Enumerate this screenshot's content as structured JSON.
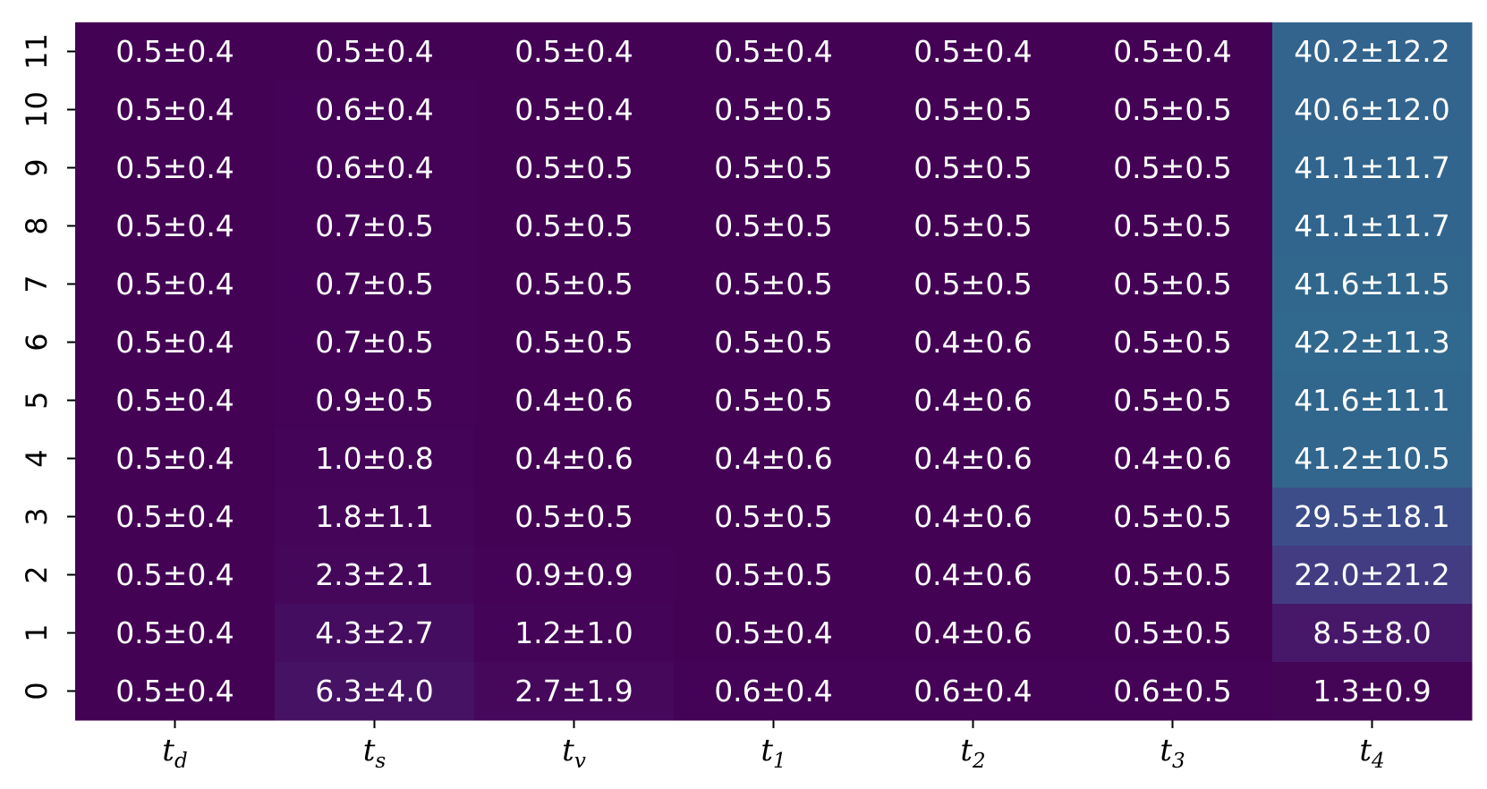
{
  "chart_data": {
    "type": "heatmap",
    "columns": [
      {
        "base": "t",
        "sub": "d"
      },
      {
        "base": "t",
        "sub": "s"
      },
      {
        "base": "t",
        "sub": "v"
      },
      {
        "base": "t",
        "sub": "1"
      },
      {
        "base": "t",
        "sub": "2"
      },
      {
        "base": "t",
        "sub": "3"
      },
      {
        "base": "t",
        "sub": "4"
      }
    ],
    "rows": [
      "11",
      "10",
      "9",
      "8",
      "7",
      "6",
      "5",
      "4",
      "3",
      "2",
      "1",
      "0"
    ],
    "values": [
      [
        0.5,
        0.5,
        0.5,
        0.5,
        0.5,
        0.5,
        40.2
      ],
      [
        0.5,
        0.6,
        0.5,
        0.5,
        0.5,
        0.5,
        40.6
      ],
      [
        0.5,
        0.6,
        0.5,
        0.5,
        0.5,
        0.5,
        41.1
      ],
      [
        0.5,
        0.7,
        0.5,
        0.5,
        0.5,
        0.5,
        41.1
      ],
      [
        0.5,
        0.7,
        0.5,
        0.5,
        0.5,
        0.5,
        41.6
      ],
      [
        0.5,
        0.7,
        0.5,
        0.5,
        0.4,
        0.5,
        42.2
      ],
      [
        0.5,
        0.9,
        0.4,
        0.5,
        0.4,
        0.5,
        41.6
      ],
      [
        0.5,
        1.0,
        0.4,
        0.4,
        0.4,
        0.4,
        41.2
      ],
      [
        0.5,
        1.8,
        0.5,
        0.5,
        0.4,
        0.5,
        29.5
      ],
      [
        0.5,
        2.3,
        0.9,
        0.5,
        0.4,
        0.5,
        22.0
      ],
      [
        0.5,
        4.3,
        1.2,
        0.5,
        0.4,
        0.5,
        8.5
      ],
      [
        0.5,
        6.3,
        2.7,
        0.6,
        0.6,
        0.6,
        1.3
      ]
    ],
    "labels": [
      [
        "0.5±0.4",
        "0.5±0.4",
        "0.5±0.4",
        "0.5±0.4",
        "0.5±0.4",
        "0.5±0.4",
        "40.2±12.2"
      ],
      [
        "0.5±0.4",
        "0.6±0.4",
        "0.5±0.4",
        "0.5±0.5",
        "0.5±0.5",
        "0.5±0.5",
        "40.6±12.0"
      ],
      [
        "0.5±0.4",
        "0.6±0.4",
        "0.5±0.5",
        "0.5±0.5",
        "0.5±0.5",
        "0.5±0.5",
        "41.1±11.7"
      ],
      [
        "0.5±0.4",
        "0.7±0.5",
        "0.5±0.5",
        "0.5±0.5",
        "0.5±0.5",
        "0.5±0.5",
        "41.1±11.7"
      ],
      [
        "0.5±0.4",
        "0.7±0.5",
        "0.5±0.5",
        "0.5±0.5",
        "0.5±0.5",
        "0.5±0.5",
        "41.6±11.5"
      ],
      [
        "0.5±0.4",
        "0.7±0.5",
        "0.5±0.5",
        "0.5±0.5",
        "0.4±0.6",
        "0.5±0.5",
        "42.2±11.3"
      ],
      [
        "0.5±0.4",
        "0.9±0.5",
        "0.4±0.6",
        "0.5±0.5",
        "0.4±0.6",
        "0.5±0.5",
        "41.6±11.1"
      ],
      [
        "0.5±0.4",
        "1.0±0.8",
        "0.4±0.6",
        "0.4±0.6",
        "0.4±0.6",
        "0.4±0.6",
        "41.2±10.5"
      ],
      [
        "0.5±0.4",
        "1.8±1.1",
        "0.5±0.5",
        "0.5±0.5",
        "0.4±0.6",
        "0.5±0.5",
        "29.5±18.1"
      ],
      [
        "0.5±0.4",
        "2.3±2.1",
        "0.9±0.9",
        "0.5±0.5",
        "0.4±0.6",
        "0.5±0.5",
        "22.0±21.2"
      ],
      [
        "0.5±0.4",
        "4.3±2.7",
        "1.2±1.0",
        "0.5±0.4",
        "0.4±0.6",
        "0.5±0.5",
        "8.5±8.0"
      ],
      [
        "0.5±0.4",
        "6.3±4.0",
        "2.7±1.9",
        "0.6±0.4",
        "0.6±0.4",
        "0.6±0.5",
        "1.3±0.9"
      ]
    ],
    "colormap": "viridis",
    "color_range": [
      0,
      100
    ],
    "colorbar": false,
    "grid": false
  }
}
